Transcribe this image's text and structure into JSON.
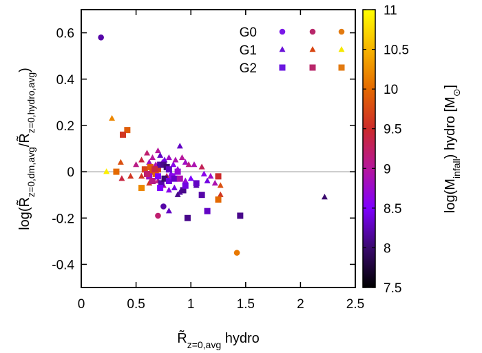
{
  "chart_data": {
    "type": "scatter",
    "xlim": [
      0,
      2.5
    ],
    "ylim": [
      -0.5,
      0.7
    ],
    "x_ticks": [
      "0",
      "0.5",
      "1",
      "1.5",
      "2",
      "2.5"
    ],
    "y_ticks": [
      "-0.4",
      "-0.2",
      "0",
      "0.2",
      "0.4",
      "0.6"
    ],
    "colorbar": {
      "range": [
        7.5,
        11
      ],
      "ticks": [
        "7.5",
        "8",
        "8.5",
        "9",
        "9.5",
        "10",
        "10.5",
        "11"
      ],
      "stops": [
        "#000000",
        "#3a0a6e",
        "#7f00ff",
        "#b6179c",
        "#cc2b2b",
        "#e46900",
        "#f7b400",
        "#ffff00"
      ]
    },
    "zero_line": 0,
    "legend": {
      "position": "top-right",
      "groups": [
        {
          "label": "G0",
          "marker": "circle",
          "colors": [
            "#7a18e8",
            "#b8276a",
            "#e27a10"
          ]
        },
        {
          "label": "G1",
          "marker": "triangle",
          "colors": [
            "#6a12d8",
            "#d84410",
            "#f5e800"
          ]
        },
        {
          "label": "G2",
          "marker": "square",
          "colors": [
            "#6a16e0",
            "#b8276a",
            "#e27a10"
          ]
        }
      ]
    },
    "series": [
      {
        "group": "G0",
        "marker": "circle",
        "points": [
          [
            0.18,
            0.58,
            8.2
          ],
          [
            0.75,
            -0.15,
            8.2
          ],
          [
            0.7,
            -0.19,
            9.2
          ],
          [
            1.42,
            -0.35,
            10.1
          ]
        ]
      },
      {
        "group": "G1",
        "marker": "triangle",
        "points": [
          [
            0.28,
            0.23,
            10.2
          ],
          [
            0.23,
            0.0,
            10.9
          ],
          [
            0.36,
            0.04,
            9.8
          ],
          [
            0.37,
            -0.03,
            9.4
          ],
          [
            0.45,
            -0.02,
            9.6
          ],
          [
            0.5,
            0.03,
            9.1
          ],
          [
            0.55,
            0.05,
            9.4
          ],
          [
            0.55,
            -0.02,
            9.6
          ],
          [
            0.6,
            0.08,
            9.2
          ],
          [
            0.62,
            0.04,
            8.8
          ],
          [
            0.65,
            0.06,
            9.0
          ],
          [
            0.67,
            0.02,
            9.4
          ],
          [
            0.7,
            0.09,
            9.0
          ],
          [
            0.72,
            0.07,
            8.3
          ],
          [
            0.74,
            0.04,
            8.6
          ],
          [
            0.76,
            0.05,
            8.4
          ],
          [
            0.78,
            0.02,
            8.7
          ],
          [
            0.8,
            0.06,
            8.8
          ],
          [
            0.82,
            -0.01,
            8.5
          ],
          [
            0.84,
            0.03,
            8.6
          ],
          [
            0.86,
            0.05,
            8.9
          ],
          [
            0.88,
            0.01,
            8.7
          ],
          [
            0.9,
            0.11,
            8.3
          ],
          [
            0.92,
            0.06,
            9.0
          ],
          [
            0.95,
            0.04,
            8.8
          ],
          [
            0.98,
            0.03,
            9.1
          ],
          [
            1.0,
            -0.03,
            8.5
          ],
          [
            1.03,
            0.03,
            8.9
          ],
          [
            1.05,
            -0.06,
            8.2
          ],
          [
            1.1,
            0.02,
            9.3
          ],
          [
            1.12,
            -0.01,
            8.6
          ],
          [
            1.15,
            -0.04,
            8.4
          ],
          [
            1.18,
            -0.02,
            8.8
          ],
          [
            1.22,
            -0.05,
            8.9
          ],
          [
            1.27,
            -0.06,
            9.8
          ],
          [
            1.27,
            -0.1,
            9.6
          ],
          [
            0.7,
            -0.04,
            9.1
          ],
          [
            0.75,
            -0.06,
            8.9
          ],
          [
            0.8,
            -0.08,
            8.6
          ],
          [
            0.85,
            -0.07,
            8.4
          ],
          [
            0.9,
            -0.09,
            8.2
          ],
          [
            0.95,
            -0.04,
            8.7
          ],
          [
            0.8,
            -0.17,
            8.3
          ],
          [
            0.88,
            -0.1,
            8.1
          ],
          [
            0.78,
            -0.02,
            9.3
          ],
          [
            0.68,
            0.03,
            8.9
          ],
          [
            0.58,
            0.01,
            9.5
          ],
          [
            0.62,
            -0.05,
            9.6
          ],
          [
            2.22,
            -0.11,
            8.0
          ]
        ]
      },
      {
        "group": "G2",
        "marker": "square",
        "points": [
          [
            0.42,
            0.18,
            9.9
          ],
          [
            0.38,
            0.16,
            9.6
          ],
          [
            0.32,
            0.0,
            10.0
          ],
          [
            0.55,
            -0.07,
            10.2
          ],
          [
            0.58,
            0.01,
            9.7
          ],
          [
            0.63,
            0.02,
            9.9
          ],
          [
            0.65,
            0.0,
            9.8
          ],
          [
            0.68,
            -0.01,
            10.0
          ],
          [
            0.7,
            0.01,
            9.6
          ],
          [
            0.72,
            0.03,
            8.2
          ],
          [
            0.75,
            0.03,
            8.1
          ],
          [
            0.78,
            0.02,
            8.0
          ],
          [
            0.8,
            0.01,
            8.3
          ],
          [
            0.62,
            -0.02,
            8.8
          ],
          [
            0.65,
            -0.04,
            9.1
          ],
          [
            0.7,
            -0.02,
            8.5
          ],
          [
            0.73,
            -0.05,
            8.2
          ],
          [
            0.76,
            -0.03,
            8.0
          ],
          [
            0.8,
            -0.04,
            8.4
          ],
          [
            0.83,
            -0.02,
            8.6
          ],
          [
            0.85,
            -0.03,
            8.3
          ],
          [
            0.88,
            0.0,
            8.7
          ],
          [
            0.9,
            -0.03,
            8.9
          ],
          [
            0.93,
            -0.08,
            8.1
          ],
          [
            0.95,
            -0.06,
            8.4
          ],
          [
            0.97,
            -0.2,
            8.1
          ],
          [
            1.05,
            -0.05,
            8.3
          ],
          [
            1.1,
            -0.1,
            8.2
          ],
          [
            1.15,
            -0.17,
            8.3
          ],
          [
            1.25,
            -0.12,
            10.0
          ],
          [
            1.25,
            -0.02,
            9.5
          ],
          [
            1.45,
            -0.19,
            8.1
          ],
          [
            0.6,
            -0.01,
            9.2
          ],
          [
            0.67,
            0.01,
            9.4
          ],
          [
            0.72,
            -0.07,
            8.5
          ]
        ]
      }
    ],
    "xlabel": "R̃",
    "xlabel_sub": "z=0,avg",
    "xlabel_tail": " hydro",
    "ylabel": "log(R̃",
    "ylabel_sub1": "z=0,dm,avg",
    "ylabel_mid": "/R̃",
    "ylabel_sub2": "z=0,hydro,avg",
    "ylabel_tail": ")",
    "cblabel": "log(M",
    "cblabel_sub": "infall",
    "cblabel_mid": ") hydro [M",
    "cblabel_sun": "⊙",
    "cblabel_tail": "]"
  }
}
